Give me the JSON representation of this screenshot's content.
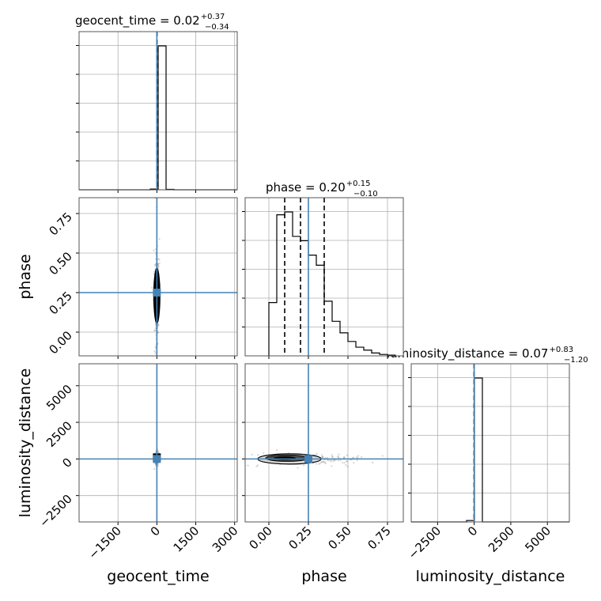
{
  "chart_data": {
    "type": "corner",
    "parameters": [
      "geocent_time",
      "phase",
      "luminosity_distance"
    ],
    "truth": {
      "geocent_time": 0,
      "phase": 0.25,
      "luminosity_distance": 0
    },
    "truth_color": "#4682b4",
    "grid": true,
    "axes": {
      "geocent_time": {
        "range": [
          -3000,
          3100
        ],
        "ticks": [
          -1500,
          0,
          1500,
          3000
        ],
        "tick_labels": [
          "−1500",
          "0",
          "1500",
          "3000"
        ]
      },
      "phase": {
        "range": [
          -0.15,
          0.85
        ],
        "ticks": [
          0.0,
          0.25,
          0.5,
          0.75
        ],
        "tick_labels": [
          "0.00",
          "0.25",
          "0.50",
          "0.75"
        ]
      },
      "luminosity_distance": {
        "range": [
          -4300,
          6500
        ],
        "ticks": [
          -2500,
          0,
          2500,
          5000
        ],
        "tick_labels": [
          "−2500",
          "0",
          "2500",
          "5000"
        ]
      }
    },
    "titles": [
      {
        "param": "geocent_time",
        "prefix": "geocent_time = 0.02",
        "plus": "+0.37",
        "minus": "−0.34",
        "quantiles": [
          -0.32,
          0.02,
          0.39
        ]
      },
      {
        "param": "phase",
        "prefix": "phase = 0.20",
        "plus": "+0.15",
        "minus": "−0.10",
        "quantiles": [
          0.1,
          0.2,
          0.35
        ]
      },
      {
        "param": "luminosity_distance",
        "prefix": "luminosity_distance = 0.07",
        "plus": "+0.83",
        "minus": "−1.20",
        "quantiles": [
          -1.13,
          0.07,
          0.9
        ]
      }
    ],
    "histograms": {
      "geocent_time": {
        "edges": [
          -3000,
          -2695,
          -2390,
          -2085,
          -1780,
          -1475,
          -1170,
          -865,
          -560,
          -255,
          50,
          355,
          660,
          965,
          1270,
          1575,
          1880,
          2185,
          2490,
          2795,
          3100
        ],
        "counts": [
          0,
          0,
          0,
          0,
          0,
          0,
          0,
          0,
          0,
          0.005,
          1,
          0.003,
          0,
          0,
          0,
          0,
          0,
          0,
          0,
          0
        ]
      },
      "phase": {
        "edges": [
          0.0,
          0.05,
          0.1,
          0.15,
          0.2,
          0.25,
          0.3,
          0.35,
          0.4,
          0.45,
          0.5,
          0.55,
          0.6,
          0.65,
          0.7,
          0.75,
          0.8
        ],
        "counts": [
          0.37,
          0.98,
          1.0,
          0.83,
          0.8,
          0.7,
          0.63,
          0.38,
          0.24,
          0.16,
          0.1,
          0.06,
          0.04,
          0.02,
          0.01,
          0.005
        ]
      },
      "luminosity_distance": {
        "edges": [
          -4300,
          -3760,
          -3220,
          -2680,
          -2140,
          -1600,
          -1060,
          -520,
          20,
          560,
          1100,
          1640,
          2180,
          2720,
          3260,
          3800,
          4340,
          4880,
          5420,
          5960,
          6500
        ],
        "counts": [
          0,
          0,
          0,
          0,
          0,
          0,
          0,
          0.01,
          1,
          0,
          0,
          0,
          0,
          0,
          0,
          0,
          0,
          0,
          0,
          0
        ]
      }
    },
    "scatter": {
      "phase_vs_geocent_time": {
        "x_center": 0,
        "x_spread": 30,
        "y_center": 0.22,
        "y_spread": 0.14
      },
      "luminosity_distance_vs_geocent_time": {
        "x_center": 0,
        "x_spread": 20,
        "y_center": 0,
        "y_spread": 150
      },
      "luminosity_distance_vs_phase": {
        "x_center": 0.24,
        "x_spread": 0.1,
        "y_center": 0,
        "y_spread": 150
      }
    }
  }
}
